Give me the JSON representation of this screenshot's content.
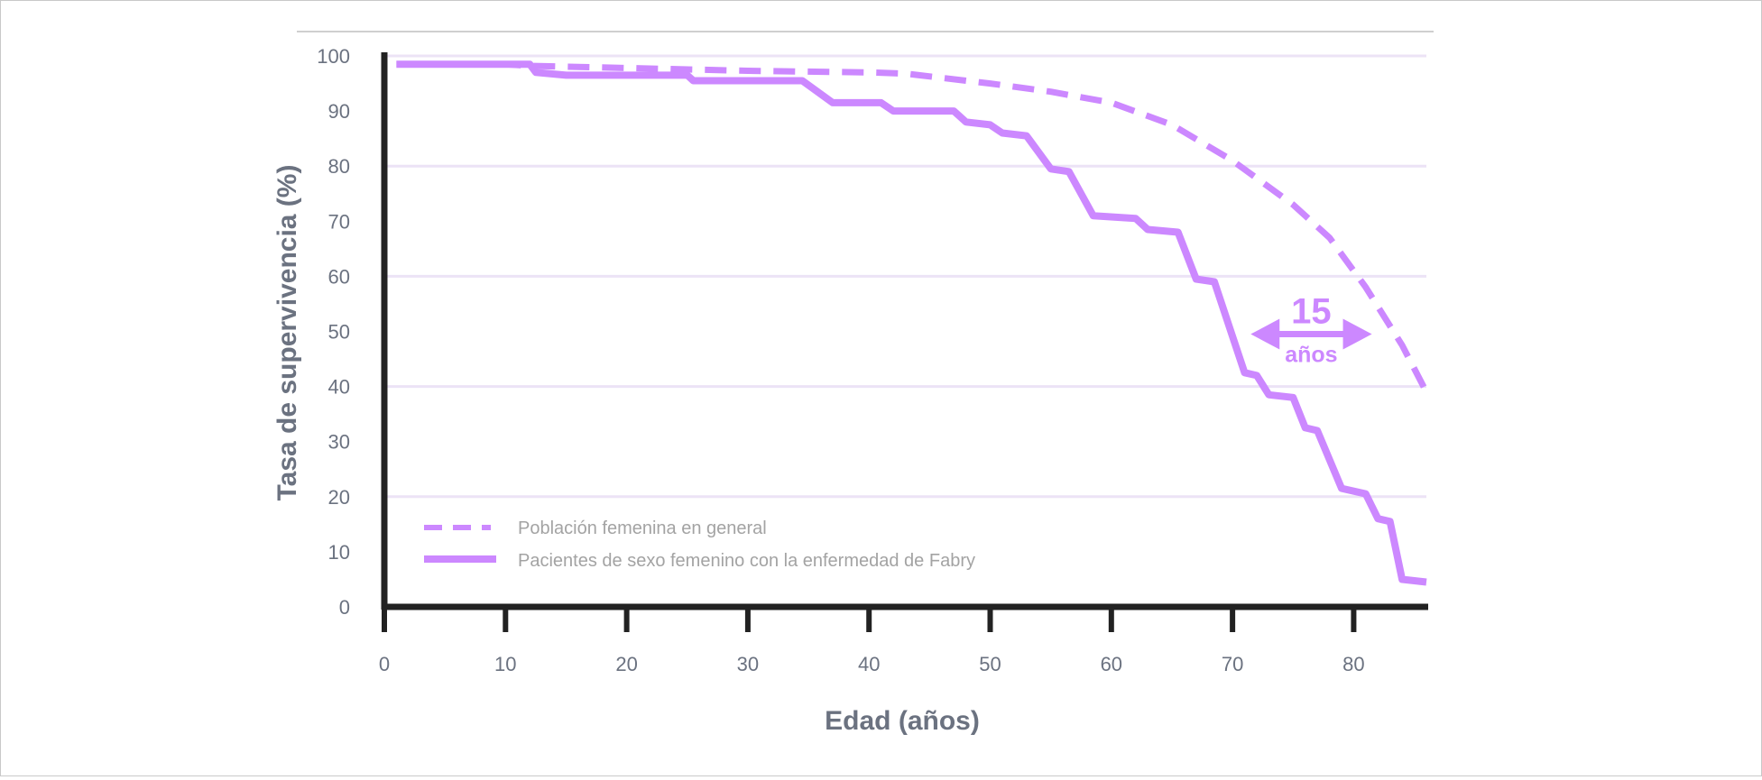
{
  "chart_data": {
    "type": "line",
    "xlabel": "Edad (años)",
    "ylabel": "Tasa de supervivencia (%)",
    "xlim": [
      0,
      86
    ],
    "ylim": [
      0,
      100
    ],
    "x_ticks": [
      0,
      10,
      20,
      30,
      40,
      50,
      60,
      70,
      80
    ],
    "y_ticks": [
      0,
      10,
      20,
      30,
      40,
      50,
      60,
      70,
      80,
      90,
      100
    ],
    "grid": "horizontal",
    "legend_position": "bottom-left",
    "colors": {
      "series": "#cc88ff",
      "axis": "#222222",
      "grid": "#ece3f6",
      "text": "#6b7280"
    },
    "series": [
      {
        "name": "Población femenina en general",
        "style": "dashed",
        "points": [
          [
            1,
            98.5
          ],
          [
            10,
            98.5
          ],
          [
            12,
            98.2
          ],
          [
            20,
            97.8
          ],
          [
            30,
            97.3
          ],
          [
            40,
            97.0
          ],
          [
            43,
            96.8
          ],
          [
            50,
            95.0
          ],
          [
            55,
            93.5
          ],
          [
            60,
            91.5
          ],
          [
            65,
            87.5
          ],
          [
            70,
            81.0
          ],
          [
            75,
            73.0
          ],
          [
            78,
            67.0
          ],
          [
            81,
            58.0
          ],
          [
            84,
            47.5
          ],
          [
            86,
            39.0
          ]
        ]
      },
      {
        "name": "Pacientes de sexo femenino con la enfermedad de Fabry",
        "style": "solid",
        "points": [
          [
            1,
            98.5
          ],
          [
            12,
            98.5
          ],
          [
            12.5,
            97.0
          ],
          [
            15,
            96.5
          ],
          [
            19,
            96.5
          ],
          [
            25,
            96.5
          ],
          [
            25.5,
            95.5
          ],
          [
            30,
            95.5
          ],
          [
            34.5,
            95.5
          ],
          [
            37,
            91.5
          ],
          [
            41,
            91.5
          ],
          [
            42,
            90.0
          ],
          [
            47,
            90.0
          ],
          [
            48,
            88.0
          ],
          [
            50,
            87.5
          ],
          [
            51,
            86.0
          ],
          [
            53,
            85.5
          ],
          [
            55,
            79.5
          ],
          [
            56.5,
            79.0
          ],
          [
            58.5,
            71.0
          ],
          [
            62,
            70.5
          ],
          [
            63,
            68.5
          ],
          [
            65.5,
            68.0
          ],
          [
            67,
            59.5
          ],
          [
            68.5,
            59.0
          ],
          [
            71,
            42.5
          ],
          [
            72,
            42.0
          ],
          [
            73,
            38.5
          ],
          [
            75,
            38.0
          ],
          [
            76,
            32.5
          ],
          [
            77,
            32.0
          ],
          [
            79,
            21.5
          ],
          [
            81,
            20.5
          ],
          [
            82,
            16.0
          ],
          [
            83,
            15.5
          ],
          [
            84,
            5.0
          ],
          [
            86,
            4.5
          ]
        ]
      }
    ],
    "annotation": {
      "value": "15",
      "unit": "años",
      "x_from": 71.5,
      "x_to": 81.5,
      "y": 49.5
    }
  }
}
